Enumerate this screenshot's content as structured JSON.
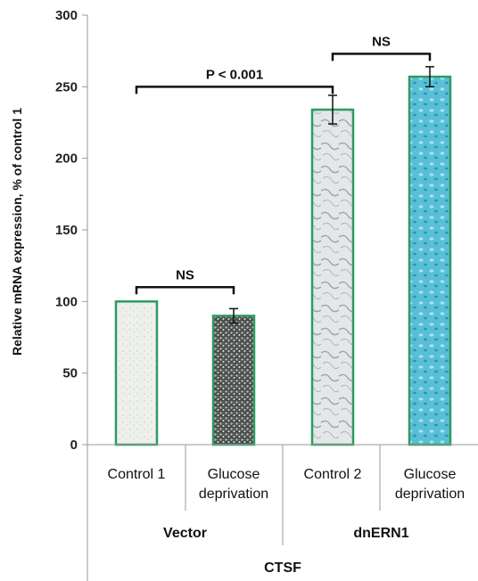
{
  "chart_data": {
    "type": "bar",
    "ylabel": "Relative mRNA expression, % of control 1",
    "ylim": [
      0,
      300
    ],
    "yticks": [
      0,
      50,
      100,
      150,
      200,
      250,
      300
    ],
    "categories": [
      "Control 1",
      "Glucose deprivation",
      "Control 2",
      "Glucose deprivation"
    ],
    "category_lines": [
      [
        "Control 1"
      ],
      [
        "Glucose",
        "deprivation"
      ],
      [
        "Control 2"
      ],
      [
        "Glucose",
        "deprivation"
      ]
    ],
    "groups": [
      {
        "label": "Vector",
        "members": [
          0,
          1
        ]
      },
      {
        "label": "dnERN1",
        "members": [
          2,
          3
        ]
      }
    ],
    "super_group": "CTSF",
    "values": [
      100,
      90,
      234,
      257
    ],
    "errors": [
      0,
      5,
      10,
      7
    ],
    "fills": [
      "#eef0ec",
      "#6b6f6d",
      "#d4d9da",
      "#4fb6cf"
    ],
    "bar_edge_color": "#2e9a63",
    "annotations": [
      {
        "text": "NS",
        "from": 0,
        "to": 1,
        "y": 110
      },
      {
        "text": "P < 0.001",
        "from": 0,
        "to": 2,
        "y": 250
      },
      {
        "text": "NS",
        "from": 2,
        "to": 3,
        "y": 273
      }
    ]
  }
}
